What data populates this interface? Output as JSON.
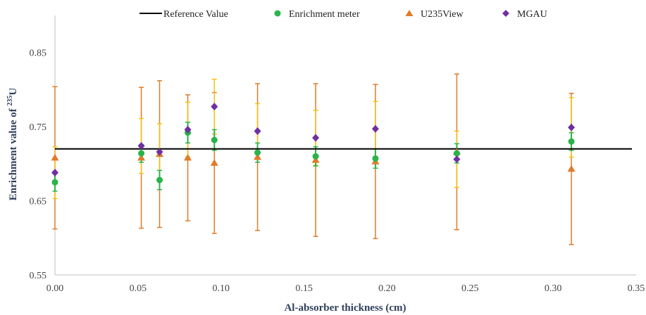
{
  "chart_data": {
    "type": "scatter",
    "xlabel": "Al-absorber thickness (cm)",
    "ylabel_prefix": "Enrichment value of ",
    "ylabel_sup": "235",
    "ylabel_suffix": "U",
    "xlim": [
      0.0,
      0.35
    ],
    "ylim": [
      0.55,
      0.9
    ],
    "x_ticks": [
      0.0,
      0.05,
      0.1,
      0.15,
      0.2,
      0.25,
      0.3,
      0.35
    ],
    "x_tick_labels": [
      "0.00",
      "0.05",
      "0.10",
      "0.15",
      "0.20",
      "0.25",
      "0.30",
      "0.35"
    ],
    "y_ticks": [
      0.55,
      0.65,
      0.75,
      0.85
    ],
    "y_tick_labels": [
      "0.55",
      "0.65",
      "0.75",
      "0.85"
    ],
    "grid": false,
    "legend_position": "top",
    "reference": {
      "name": "Reference Value",
      "value": 0.72,
      "color": "#000000"
    },
    "series": [
      {
        "name": "Enrichment meter",
        "marker": "circle",
        "color": "#2ab34a",
        "error_color": "#2ab34a",
        "points": [
          {
            "x": 0.0,
            "y": 0.675,
            "err": 0.012
          },
          {
            "x": 0.052,
            "y": 0.714,
            "err": 0.012
          },
          {
            "x": 0.063,
            "y": 0.678,
            "err": 0.013
          },
          {
            "x": 0.08,
            "y": 0.742,
            "err": 0.014
          },
          {
            "x": 0.096,
            "y": 0.732,
            "err": 0.014
          },
          {
            "x": 0.122,
            "y": 0.715,
            "err": 0.013
          },
          {
            "x": 0.157,
            "y": 0.71,
            "err": 0.013
          },
          {
            "x": 0.193,
            "y": 0.707,
            "err": 0.013
          },
          {
            "x": 0.242,
            "y": 0.714,
            "err": 0.013
          },
          {
            "x": 0.311,
            "y": 0.73,
            "err": 0.012
          }
        ]
      },
      {
        "name": "U235View",
        "marker": "triangle",
        "color": "#e07b28",
        "error_color": "#e07b28",
        "points": [
          {
            "x": 0.0,
            "y": 0.708,
            "err": 0.096
          },
          {
            "x": 0.052,
            "y": 0.708,
            "err": 0.095
          },
          {
            "x": 0.063,
            "y": 0.713,
            "err": 0.099
          },
          {
            "x": 0.08,
            "y": 0.708,
            "err": 0.085
          },
          {
            "x": 0.096,
            "y": 0.701,
            "err": 0.095
          },
          {
            "x": 0.122,
            "y": 0.709,
            "err": 0.099
          },
          {
            "x": 0.157,
            "y": 0.705,
            "err": 0.103
          },
          {
            "x": 0.193,
            "y": 0.703,
            "err": 0.104
          },
          {
            "x": 0.242,
            "y": 0.716,
            "err": 0.105
          },
          {
            "x": 0.311,
            "y": 0.693,
            "err": 0.102
          }
        ]
      },
      {
        "name": "MGAU",
        "marker": "diamond",
        "color": "#7030a0",
        "error_color": "#f2c314",
        "points": [
          {
            "x": 0.0,
            "y": 0.688,
            "err": 0.035
          },
          {
            "x": 0.052,
            "y": 0.724,
            "err": 0.037
          },
          {
            "x": 0.063,
            "y": 0.716,
            "err": 0.038
          },
          {
            "x": 0.08,
            "y": 0.746,
            "err": 0.037
          },
          {
            "x": 0.096,
            "y": 0.777,
            "err": 0.037
          },
          {
            "x": 0.122,
            "y": 0.744,
            "err": 0.037
          },
          {
            "x": 0.157,
            "y": 0.735,
            "err": 0.037
          },
          {
            "x": 0.193,
            "y": 0.747,
            "err": 0.037
          },
          {
            "x": 0.242,
            "y": 0.706,
            "err": 0.038
          },
          {
            "x": 0.311,
            "y": 0.749,
            "err": 0.04
          }
        ]
      }
    ]
  }
}
